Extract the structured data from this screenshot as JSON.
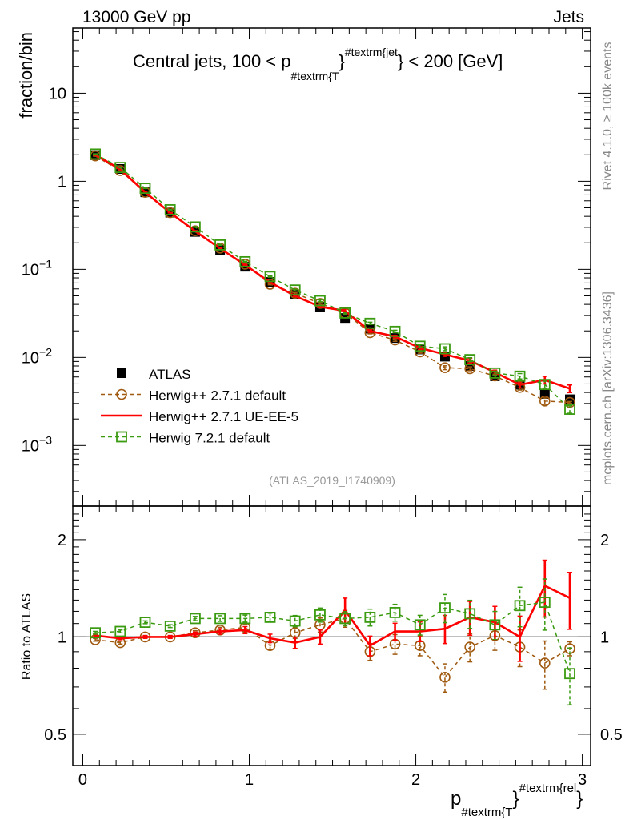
{
  "header": {
    "left": "13000 GeV pp",
    "right": "Jets"
  },
  "side_texts": {
    "rivet": "Rivet 4.1.0, ≥ 100k events",
    "mcplots": "mcplots.cern.ch [arXiv:1306.3436]"
  },
  "analysis_id": "(ATLAS_2019_I1740909)",
  "title": {
    "pre": "Central jets, 100 < p",
    "sub": "#textrm{T",
    "mid": "}",
    "sup": "#textrm{jet",
    "post": "} < 200 [GeV]"
  },
  "xlabel": {
    "pre": "p",
    "sub": "#textrm{T",
    "mid": "}",
    "sup": "#textrm{rel",
    "post": "}"
  },
  "chart_data": {
    "type": "line",
    "ylabel": "fraction/bin",
    "ratio_ylabel": "Ratio to ATLAS",
    "xlim": [
      -0.06,
      3.05
    ],
    "ylim": [
      0.000205,
      55
    ],
    "ratio_ylim": [
      0.4,
      2.54
    ],
    "y_scale": "log",
    "ratio_scale": "log",
    "x_ticks": [
      0,
      1,
      2,
      3
    ],
    "x_tick_labels": [
      "0",
      "1",
      "2",
      "3"
    ],
    "y_ticks": [
      10,
      1,
      0.1,
      0.01,
      0.001
    ],
    "y_tick_labels": [
      {
        "base": "10",
        "exp": ""
      },
      {
        "base": "1",
        "exp": ""
      },
      {
        "base": "10",
        "exp": "−1"
      },
      {
        "base": "10",
        "exp": "−2"
      },
      {
        "base": "10",
        "exp": "−3"
      }
    ],
    "ratio_ticks": [
      2,
      1,
      0.5
    ],
    "ratio_tick_labels": [
      "2",
      "1",
      "0.5"
    ],
    "legend_position": "center-left",
    "x": [
      0.075,
      0.225,
      0.375,
      0.525,
      0.675,
      0.825,
      0.975,
      1.125,
      1.275,
      1.425,
      1.575,
      1.725,
      1.875,
      2.025,
      2.175,
      2.325,
      2.475,
      2.625,
      2.775,
      2.925
    ],
    "data": {
      "name": "ATLAS",
      "color": "#000000",
      "values": [
        1.98,
        1.38,
        0.75,
        0.44,
        0.266,
        0.166,
        0.107,
        0.072,
        0.052,
        0.0376,
        0.028,
        0.0212,
        0.0166,
        0.0123,
        0.0102,
        0.008,
        0.0061,
        0.0049,
        0.00385,
        0.00335
      ]
    },
    "series": [
      {
        "name": "Herwig++ 2.7.1 default",
        "color": "#a05a10",
        "style": "dashed-circle",
        "ratio": [
          0.98,
          0.96,
          1.0,
          1.0,
          1.03,
          1.05,
          1.07,
          0.94,
          1.03,
          1.09,
          1.14,
          0.9,
          0.95,
          0.94,
          0.75,
          0.93,
          1.01,
          0.93,
          0.83,
          0.92
        ],
        "ratio_err": [
          0.01,
          0.01,
          0.01,
          0.01,
          0.015,
          0.02,
          0.025,
          0.03,
          0.04,
          0.05,
          0.06,
          0.06,
          0.07,
          0.07,
          0.1,
          0.1,
          0.1,
          0.13,
          0.17,
          0.05
        ]
      },
      {
        "name": "Herwig++ 2.7.1 UE-EE-5",
        "color": "#ff0000",
        "style": "solid",
        "ratio": [
          1.01,
          0.99,
          1.0,
          1.0,
          1.02,
          1.04,
          1.05,
          0.99,
          0.96,
          1.0,
          1.21,
          0.94,
          1.04,
          1.04,
          1.06,
          1.15,
          1.11,
          1.0,
          1.44,
          1.32
        ],
        "ratio_err": [
          0.01,
          0.01,
          0.01,
          0.01,
          0.015,
          0.02,
          0.025,
          0.03,
          0.04,
          0.05,
          0.09,
          0.07,
          0.06,
          0.07,
          0.1,
          0.12,
          0.12,
          0.16,
          0.2,
          0.2
        ]
      },
      {
        "name": "Herwig 7.2.1 default",
        "color": "#3a9a10",
        "style": "dashed-square",
        "ratio": [
          1.03,
          1.04,
          1.11,
          1.08,
          1.14,
          1.14,
          1.14,
          1.15,
          1.12,
          1.17,
          1.14,
          1.15,
          1.19,
          1.09,
          1.23,
          1.18,
          1.09,
          1.25,
          1.28,
          0.77
        ],
        "ratio_err": [
          0.01,
          0.01,
          0.01,
          0.01,
          0.015,
          0.02,
          0.025,
          0.03,
          0.04,
          0.05,
          0.05,
          0.06,
          0.06,
          0.07,
          0.1,
          0.1,
          0.1,
          0.14,
          0.18,
          0.2
        ]
      }
    ]
  }
}
